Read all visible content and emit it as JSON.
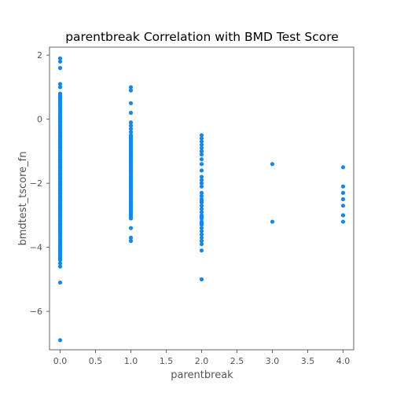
{
  "chart_data": {
    "type": "scatter",
    "title": "parentbreak Correlation with BMD Test Score",
    "xlabel": "parentbreak",
    "ylabel": "bmdtest_tscore_fn",
    "xlim": [
      -0.15,
      4.15
    ],
    "ylim": [
      -7.2,
      2.25
    ],
    "xticks": [
      0.0,
      0.5,
      1.0,
      1.5,
      2.0,
      2.5,
      3.0,
      3.5,
      4.0
    ],
    "xtick_labels": [
      "0.0",
      "0.5",
      "1.0",
      "1.5",
      "2.0",
      "2.5",
      "3.0",
      "3.5",
      "4.0"
    ],
    "yticks": [
      2,
      0,
      -2,
      -4,
      -6
    ],
    "ytick_labels": [
      "2",
      "0",
      "−2",
      "−4",
      "−6"
    ],
    "grid": false,
    "legend": false,
    "marker_color": "#1b87e5",
    "series": [
      {
        "x": [
          0,
          0,
          0,
          0,
          0,
          0,
          0,
          0,
          0,
          0,
          0,
          0,
          0,
          0,
          0,
          0,
          0,
          0,
          0,
          0,
          0,
          0,
          0,
          0,
          0,
          0,
          0,
          0,
          0,
          0,
          0,
          0,
          0,
          0,
          0,
          0,
          0,
          0,
          0,
          0,
          0,
          0,
          0,
          0,
          0,
          0,
          0,
          0,
          0,
          0,
          0,
          0,
          0,
          0,
          0,
          0,
          0,
          0,
          0,
          0,
          0,
          0,
          0,
          0,
          0,
          0,
          0,
          0,
          0,
          0,
          0,
          0,
          0,
          0,
          0,
          0,
          0,
          0,
          0,
          0,
          0,
          0,
          0,
          0,
          0,
          0,
          0,
          0,
          0,
          0,
          0,
          0,
          0,
          0,
          0,
          0,
          0,
          0,
          0,
          0,
          0,
          0,
          0,
          0,
          0,
          0,
          0,
          0,
          0,
          0,
          0,
          0,
          0,
          0,
          0,
          0,
          0,
          0,
          0,
          0,
          0,
          0,
          0,
          0,
          0,
          0,
          0,
          0,
          0,
          0,
          0,
          0,
          0,
          0,
          0,
          1,
          1,
          1,
          1,
          1,
          1,
          1,
          1,
          1,
          1,
          1,
          1,
          1,
          1,
          1,
          1,
          1,
          1,
          1,
          1,
          1,
          1,
          1,
          1,
          1,
          1,
          1,
          1,
          1,
          1,
          1,
          1,
          1,
          1,
          1,
          1,
          1,
          1,
          1,
          1,
          1,
          1,
          1,
          1,
          1,
          1,
          1,
          1,
          1,
          1,
          1,
          1,
          1,
          1,
          1,
          1,
          1,
          1,
          1,
          1,
          1,
          1,
          1,
          1,
          1,
          1,
          1,
          1,
          1,
          2,
          2,
          2,
          2,
          2,
          2,
          2,
          2,
          2,
          2,
          2,
          2,
          2,
          2,
          2,
          2,
          2,
          2,
          2,
          2,
          2,
          2,
          2,
          2,
          2,
          2,
          2,
          2,
          2,
          2,
          2,
          2,
          2,
          2,
          2,
          2,
          3,
          3,
          4,
          4,
          4,
          4,
          4,
          4,
          4
        ],
        "y": [
          1.9,
          1.8,
          1.6,
          1.1,
          1.0,
          0.8,
          0.7,
          0.6,
          0.5,
          0.4,
          0.3,
          0.2,
          0.1,
          0.0,
          -0.1,
          -0.2,
          -0.3,
          -0.4,
          -0.5,
          -0.6,
          -0.7,
          -0.8,
          -0.9,
          -1.0,
          -1.1,
          -1.2,
          -1.3,
          -1.4,
          -1.5,
          -1.6,
          -1.7,
          -1.8,
          -1.9,
          -2.0,
          -2.1,
          -2.2,
          -2.3,
          -2.4,
          -2.5,
          -2.6,
          -2.7,
          -2.8,
          -2.9,
          -3.0,
          -3.1,
          -3.2,
          -3.3,
          -3.4,
          -3.5,
          -3.6,
          -3.7,
          -3.8,
          -3.9,
          -4.0,
          -4.1,
          -4.2,
          -4.3,
          -4.4,
          -4.5,
          -4.6,
          -5.1,
          -6.9,
          0.75,
          0.65,
          0.55,
          0.45,
          0.35,
          0.25,
          0.15,
          0.05,
          -0.05,
          -0.15,
          -0.25,
          -0.35,
          -0.45,
          -0.55,
          -0.65,
          -0.75,
          -0.85,
          -0.95,
          -1.05,
          -1.15,
          -1.25,
          -1.35,
          -1.45,
          -1.55,
          -1.65,
          -1.75,
          -1.85,
          -1.95,
          -2.05,
          -2.15,
          -2.25,
          -2.35,
          -2.45,
          -2.55,
          -2.65,
          -2.75,
          -2.85,
          -2.95,
          -3.05,
          -3.15,
          -3.25,
          -3.35,
          -3.45,
          -3.55,
          -3.65,
          -3.75,
          -3.85,
          -3.95,
          -4.05,
          -4.15,
          -4.25,
          -4.35,
          -1.02,
          -1.48,
          -2.03,
          -2.46,
          -0.98,
          -1.52,
          -1.97,
          -2.54,
          -2.98,
          -0.52,
          -0.43,
          -1.27,
          -1.72,
          -2.21,
          -2.69,
          -3.17,
          -0.88,
          -1.33,
          -1.83,
          -2.31,
          -2.77,
          1.0,
          0.9,
          0.5,
          0.2,
          -0.1,
          -0.2,
          -0.3,
          -0.4,
          -0.5,
          -0.6,
          -0.7,
          -0.8,
          -0.9,
          -1.0,
          -1.1,
          -1.2,
          -1.3,
          -1.4,
          -1.5,
          -1.6,
          -1.7,
          -1.8,
          -1.9,
          -2.0,
          -2.1,
          -2.2,
          -2.3,
          -2.4,
          -2.5,
          -2.6,
          -2.7,
          -2.8,
          -2.9,
          -3.0,
          -3.1,
          -3.4,
          -3.7,
          -3.8,
          -0.65,
          -0.75,
          -0.85,
          -0.95,
          -1.05,
          -1.15,
          -1.25,
          -1.35,
          -1.45,
          -1.55,
          -1.65,
          -1.75,
          -1.85,
          -1.95,
          -2.05,
          -2.15,
          -2.25,
          -2.35,
          -2.45,
          -2.55,
          -2.65,
          -2.75,
          -2.85,
          -2.95,
          -3.05,
          -0.55,
          -1.62,
          -2.12,
          -2.62,
          -1.38,
          -2.48,
          -0.5,
          -0.6,
          -0.7,
          -0.8,
          -1.0,
          -1.1,
          -1.4,
          -1.6,
          -1.8,
          -2.0,
          -2.1,
          -2.4,
          -2.5,
          -2.6,
          -2.7,
          -2.8,
          -3.0,
          -3.1,
          -3.2,
          -3.3,
          -3.4,
          -3.5,
          -3.6,
          -3.8,
          -3.9,
          -4.1,
          -5.0,
          -0.9,
          -1.25,
          -1.9,
          -2.3,
          -2.55,
          -2.9,
          -3.05,
          -3.25,
          -3.7,
          -1.4,
          -3.2,
          -1.5,
          -2.1,
          -2.3,
          -2.5,
          -2.7,
          -3.0,
          -3.2
        ]
      }
    ]
  }
}
